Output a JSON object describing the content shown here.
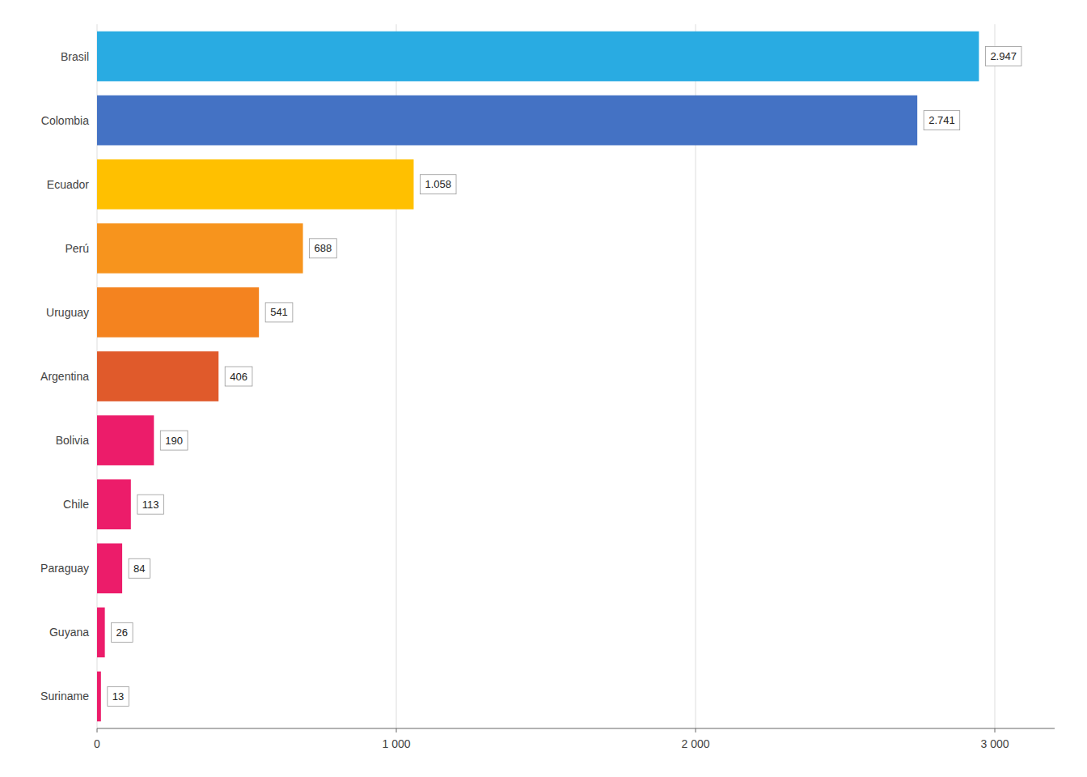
{
  "chart_data": {
    "type": "bar",
    "orientation": "horizontal",
    "categories": [
      "Brasil",
      "Colombia",
      "Ecuador",
      "Perú",
      "Uruguay",
      "Argentina",
      "Bolivia",
      "Chile",
      "Paraguay",
      "Guyana",
      "Suriname"
    ],
    "values": [
      2947,
      2741,
      1058,
      688,
      541,
      406,
      190,
      113,
      84,
      26,
      13
    ],
    "value_labels": [
      "2.947",
      "2.741",
      "1.058",
      "688",
      "541",
      "406",
      "190",
      "113",
      "84",
      "26",
      "13"
    ],
    "colors": [
      "#29ABE2",
      "#4472C4",
      "#FFC000",
      "#F7941D",
      "#F4831F",
      "#E05A2B",
      "#EC1C6A",
      "#EC1C6A",
      "#EC1C6A",
      "#EC1C6A",
      "#EC1C6A"
    ],
    "xlim": [
      0,
      3200
    ],
    "xticks": [
      0,
      {
        "value": 1000,
        "label": "1 000"
      },
      {
        "value": 2000,
        "label": "2 000"
      },
      {
        "value": 3000,
        "label": "3 000"
      }
    ],
    "grid": true,
    "data_labels": true
  }
}
